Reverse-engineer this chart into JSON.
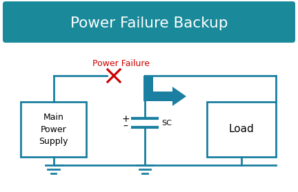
{
  "title": "Power Failure Backup",
  "title_bg_color": "#1a8a9a",
  "title_text_color": "#ffffff",
  "diagram_line_color": "#1a7fa0",
  "line_width": 2.0,
  "box_edge_color": "#1a7fa0",
  "box_face_color": "#ffffff",
  "main_box_label": "Main\nPower\nSupply",
  "load_box_label": "Load",
  "sc_label": "SC",
  "plus_label": "+",
  "minus_label": "–",
  "power_failure_label": "Power Failure",
  "failure_color": "#cc0000",
  "background_color": "#ffffff",
  "arrow_color": "#1a7fa0"
}
